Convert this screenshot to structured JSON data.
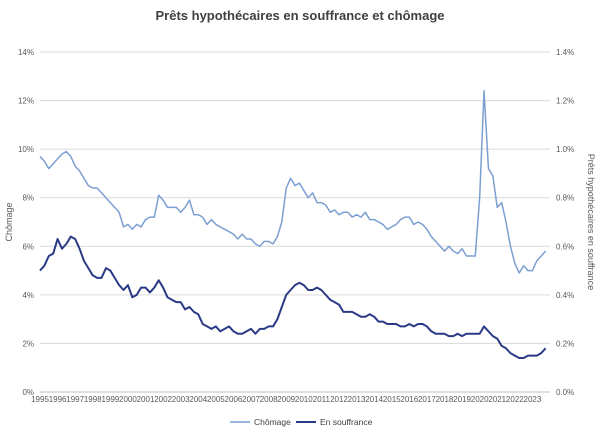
{
  "chart_data": {
    "type": "line",
    "title": "Prêts hypothécaires en souffrance et chômage",
    "ylabel_left": "Chômage",
    "ylabel_right": "Prêts hypothécaires en souffrance",
    "y_left_ticks": [
      "0%",
      "2%",
      "4%",
      "6%",
      "8%",
      "10%",
      "12%",
      "14%"
    ],
    "y_right_ticks": [
      "0.0%",
      "0.2%",
      "0.4%",
      "0.6%",
      "0.8%",
      "1.0%",
      "1.2%",
      "1.4%"
    ],
    "y_left_lim": [
      0,
      14
    ],
    "y_right_lim": [
      0,
      1.4
    ],
    "x_lim": [
      1995,
      2024
    ],
    "x_ticks": [
      "1995",
      "1996",
      "1997",
      "1998",
      "1999",
      "2000",
      "2001",
      "2002",
      "2003",
      "2004",
      "2005",
      "2006",
      "2007",
      "2008",
      "2009",
      "2010",
      "2011",
      "2012",
      "2013",
      "2014",
      "2015",
      "2016",
      "2017",
      "2018",
      "2019",
      "2020",
      "2021",
      "2022",
      "2023"
    ],
    "grid": "horizontal",
    "legend_position": "bottom",
    "series": [
      {
        "name": "Chômage",
        "axis": "left",
        "color": "#7c9fd1",
        "x": [
          1995.0,
          1995.25,
          1995.5,
          1995.75,
          1996.0,
          1996.25,
          1996.5,
          1996.75,
          1997.0,
          1997.25,
          1997.5,
          1997.75,
          1998.0,
          1998.25,
          1998.5,
          1998.75,
          1999.0,
          1999.25,
          1999.5,
          1999.75,
          2000.0,
          2000.25,
          2000.5,
          2000.75,
          2001.0,
          2001.25,
          2001.5,
          2001.75,
          2002.0,
          2002.25,
          2002.5,
          2002.75,
          2003.0,
          2003.25,
          2003.5,
          2003.75,
          2004.0,
          2004.25,
          2004.5,
          2004.75,
          2005.0,
          2005.25,
          2005.5,
          2005.75,
          2006.0,
          2006.25,
          2006.5,
          2006.75,
          2007.0,
          2007.25,
          2007.5,
          2007.75,
          2008.0,
          2008.25,
          2008.5,
          2008.75,
          2009.0,
          2009.25,
          2009.5,
          2009.75,
          2010.0,
          2010.25,
          2010.5,
          2010.75,
          2011.0,
          2011.25,
          2011.5,
          2011.75,
          2012.0,
          2012.25,
          2012.5,
          2012.75,
          2013.0,
          2013.25,
          2013.5,
          2013.75,
          2014.0,
          2014.25,
          2014.5,
          2014.75,
          2015.0,
          2015.25,
          2015.5,
          2015.75,
          2016.0,
          2016.25,
          2016.5,
          2016.75,
          2017.0,
          2017.25,
          2017.5,
          2017.75,
          2018.0,
          2018.25,
          2018.5,
          2018.75,
          2019.0,
          2019.25,
          2019.5,
          2019.75,
          2020.0,
          2020.25,
          2020.5,
          2020.75,
          2021.0,
          2021.25,
          2021.5,
          2021.75,
          2022.0,
          2022.25,
          2022.5,
          2022.75,
          2023.0,
          2023.25,
          2023.5,
          2023.75
        ],
        "values": [
          9.7,
          9.5,
          9.2,
          9.4,
          9.6,
          9.8,
          9.9,
          9.7,
          9.3,
          9.1,
          8.8,
          8.5,
          8.4,
          8.4,
          8.2,
          8.0,
          7.8,
          7.6,
          7.4,
          6.8,
          6.9,
          6.7,
          6.9,
          6.8,
          7.1,
          7.2,
          7.2,
          8.1,
          7.9,
          7.6,
          7.6,
          7.6,
          7.4,
          7.6,
          7.9,
          7.3,
          7.3,
          7.2,
          6.9,
          7.1,
          6.9,
          6.8,
          6.7,
          6.6,
          6.5,
          6.3,
          6.5,
          6.3,
          6.3,
          6.1,
          6.0,
          6.2,
          6.2,
          6.1,
          6.4,
          7.0,
          8.4,
          8.8,
          8.5,
          8.6,
          8.3,
          8.0,
          8.2,
          7.8,
          7.8,
          7.7,
          7.4,
          7.5,
          7.3,
          7.4,
          7.4,
          7.2,
          7.3,
          7.2,
          7.4,
          7.1,
          7.1,
          7.0,
          6.9,
          6.7,
          6.8,
          6.9,
          7.1,
          7.2,
          7.2,
          6.9,
          7.0,
          6.9,
          6.7,
          6.4,
          6.2,
          6.0,
          5.8,
          6.0,
          5.8,
          5.7,
          5.9,
          5.6,
          5.6,
          5.6,
          8.0,
          12.4,
          9.2,
          8.9,
          7.6,
          7.8,
          7.0,
          6.0,
          5.3,
          4.9,
          5.2,
          5.0,
          5.0,
          5.4,
          5.6,
          5.8
        ]
      },
      {
        "name": "En souffrance",
        "axis": "right",
        "color": "#2b3a86",
        "x": [
          1995.0,
          1995.25,
          1995.5,
          1995.75,
          1996.0,
          1996.25,
          1996.5,
          1996.75,
          1997.0,
          1997.25,
          1997.5,
          1997.75,
          1998.0,
          1998.25,
          1998.5,
          1998.75,
          1999.0,
          1999.25,
          1999.5,
          1999.75,
          2000.0,
          2000.25,
          2000.5,
          2000.75,
          2001.0,
          2001.25,
          2001.5,
          2001.75,
          2002.0,
          2002.25,
          2002.5,
          2002.75,
          2003.0,
          2003.25,
          2003.5,
          2003.75,
          2004.0,
          2004.25,
          2004.5,
          2004.75,
          2005.0,
          2005.25,
          2005.5,
          2005.75,
          2006.0,
          2006.25,
          2006.5,
          2006.75,
          2007.0,
          2007.25,
          2007.5,
          2007.75,
          2008.0,
          2008.25,
          2008.5,
          2008.75,
          2009.0,
          2009.25,
          2009.5,
          2009.75,
          2010.0,
          2010.25,
          2010.5,
          2010.75,
          2011.0,
          2011.25,
          2011.5,
          2011.75,
          2012.0,
          2012.25,
          2012.5,
          2012.75,
          2013.0,
          2013.25,
          2013.5,
          2013.75,
          2014.0,
          2014.25,
          2014.5,
          2014.75,
          2015.0,
          2015.25,
          2015.5,
          2015.75,
          2016.0,
          2016.25,
          2016.5,
          2016.75,
          2017.0,
          2017.25,
          2017.5,
          2017.75,
          2018.0,
          2018.25,
          2018.5,
          2018.75,
          2019.0,
          2019.25,
          2019.5,
          2019.75,
          2020.0,
          2020.25,
          2020.5,
          2020.75,
          2021.0,
          2021.25,
          2021.5,
          2021.75,
          2022.0,
          2022.25,
          2022.5,
          2022.75,
          2023.0,
          2023.25,
          2023.5,
          2023.75
        ],
        "values": [
          0.5,
          0.52,
          0.56,
          0.57,
          0.63,
          0.59,
          0.61,
          0.64,
          0.63,
          0.59,
          0.54,
          0.51,
          0.48,
          0.47,
          0.47,
          0.51,
          0.5,
          0.47,
          0.44,
          0.42,
          0.44,
          0.39,
          0.4,
          0.43,
          0.43,
          0.41,
          0.43,
          0.46,
          0.43,
          0.39,
          0.38,
          0.37,
          0.37,
          0.34,
          0.35,
          0.33,
          0.32,
          0.28,
          0.27,
          0.26,
          0.27,
          0.25,
          0.26,
          0.27,
          0.25,
          0.24,
          0.24,
          0.25,
          0.26,
          0.24,
          0.26,
          0.26,
          0.27,
          0.27,
          0.3,
          0.35,
          0.4,
          0.42,
          0.44,
          0.45,
          0.44,
          0.42,
          0.42,
          0.43,
          0.42,
          0.4,
          0.38,
          0.37,
          0.36,
          0.33,
          0.33,
          0.33,
          0.32,
          0.31,
          0.31,
          0.32,
          0.31,
          0.29,
          0.29,
          0.28,
          0.28,
          0.28,
          0.27,
          0.27,
          0.28,
          0.27,
          0.28,
          0.28,
          0.27,
          0.25,
          0.24,
          0.24,
          0.24,
          0.23,
          0.23,
          0.24,
          0.23,
          0.24,
          0.24,
          0.24,
          0.24,
          0.27,
          0.25,
          0.23,
          0.22,
          0.19,
          0.18,
          0.16,
          0.15,
          0.14,
          0.14,
          0.15,
          0.15,
          0.15,
          0.16,
          0.18
        ]
      }
    ]
  }
}
